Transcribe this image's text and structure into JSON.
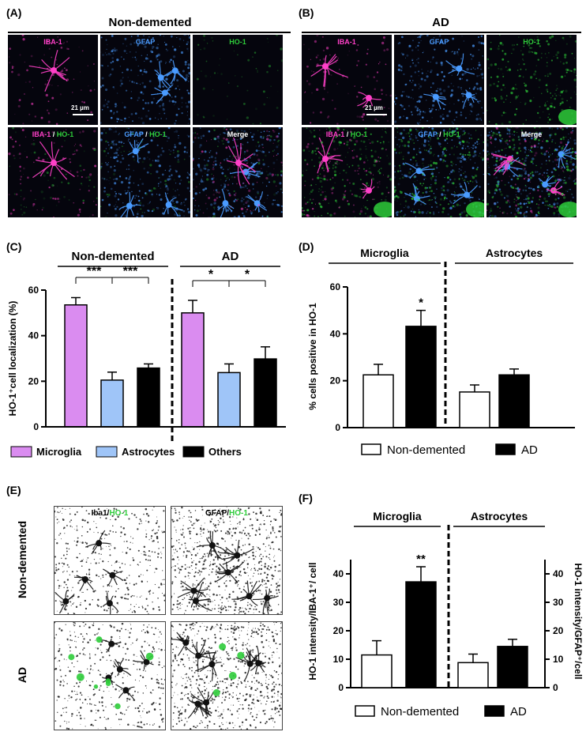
{
  "panels": {
    "A": {
      "letter": "(A)",
      "title": "Non-demented",
      "top_labels": [
        "IBA-1",
        "GFAP",
        "HO-1"
      ],
      "bottom_labels": [
        "IBA-1 / HO-1",
        "GFAP / HO-1",
        "Merge"
      ],
      "scale_bar": "21 µm"
    },
    "B": {
      "letter": "(B)",
      "title": "AD",
      "top_labels": [
        "IBA-1",
        "GFAP",
        "HO-1"
      ],
      "bottom_labels": [
        "IBA-1 / HO-1",
        "GFAP / HO-1",
        "Merge"
      ],
      "scale_bar": "21 µm"
    },
    "C": {
      "letter": "(C)"
    },
    "D": {
      "letter": "(D)"
    },
    "E": {
      "letter": "(E)",
      "col_labels": [
        "Iba1/HO-1",
        "GFAP/HO-1"
      ],
      "row_labels": [
        "Non-demented",
        "AD"
      ]
    },
    "F": {
      "letter": "(F)"
    }
  },
  "colors": {
    "microglia": "#da8cf0",
    "astrocytes": "#9fc5f8",
    "others": "#000000",
    "iba1": "#ff40c8",
    "gfap": "#4a9bff",
    "ho1": "#2ecc3a"
  },
  "chart_data": [
    {
      "id": "C",
      "type": "bar",
      "groups": [
        "Non-demented",
        "AD"
      ],
      "categories": [
        "Microglia",
        "Astrocytes",
        "Others"
      ],
      "series": [
        {
          "group": "Non-demented",
          "values": [
            53.5,
            20.5,
            25.8
          ],
          "errors": [
            3.2,
            3.5,
            1.8
          ]
        },
        {
          "group": "AD",
          "values": [
            50,
            23.8,
            29.8
          ],
          "errors": [
            5.5,
            3.8,
            5.3
          ]
        }
      ],
      "ylabel": "HO-1⁺cell localization (%)",
      "ylim": [
        0,
        60
      ],
      "yticks": [
        "0",
        "20",
        "40",
        "60"
      ],
      "significance": [
        {
          "group": "Non-demented",
          "marks": [
            "***",
            "***"
          ]
        },
        {
          "group": "AD",
          "marks": [
            "*",
            "*"
          ]
        }
      ],
      "legend": [
        "Microglia",
        "Astrocytes",
        "Others"
      ]
    },
    {
      "id": "D",
      "type": "bar",
      "groups": [
        "Microglia",
        "Astrocytes"
      ],
      "series": [
        {
          "name": "Non-demented",
          "values": [
            22.5,
            15.2
          ],
          "errors": [
            4.5,
            3.0
          ]
        },
        {
          "name": "AD",
          "values": [
            43.2,
            22.5
          ],
          "errors": [
            6.8,
            2.5
          ]
        }
      ],
      "ylabel": "% cells positive in HO-1",
      "ylim": [
        0,
        60
      ],
      "yticks": [
        "0",
        "20",
        "40",
        "60"
      ],
      "significance": [
        "*",
        ""
      ],
      "legend": [
        "Non-demented",
        "AD"
      ]
    },
    {
      "id": "F",
      "type": "bar",
      "groups": [
        "Microglia",
        "Astrocytes"
      ],
      "series": [
        {
          "name": "Non-demented",
          "values": [
            11.5,
            8.8
          ],
          "errors": [
            5.0,
            3.0
          ]
        },
        {
          "name": "AD",
          "values": [
            37.2,
            14.5
          ],
          "errors": [
            5.3,
            2.5
          ]
        }
      ],
      "ylabel_left": "HO-1 intensity/IBA-1⁺/ cell",
      "ylabel_right": "HO-1 intensity/GFAP⁺/cell",
      "ylim": [
        0,
        45
      ],
      "yticks": [
        "0",
        "10",
        "20",
        "30",
        "40"
      ],
      "significance": [
        "**",
        ""
      ],
      "legend": [
        "Non-demented",
        "AD"
      ]
    }
  ]
}
